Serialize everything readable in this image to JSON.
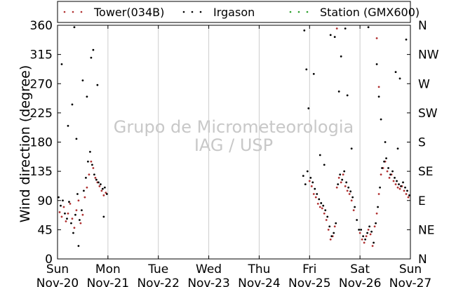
{
  "chart_data": {
    "type": "scatter",
    "title": "",
    "ylabel": "Wind direction (degree)",
    "xlabel": "",
    "ylim": [
      0,
      360
    ],
    "xlim": [
      "2016-11-20T00:00",
      "2016-11-27T00:00"
    ],
    "yticks": [
      0,
      45,
      90,
      135,
      180,
      225,
      270,
      315,
      360
    ],
    "compass_ticks": [
      {
        "value": 0,
        "label": "N"
      },
      {
        "value": 45,
        "label": "NE"
      },
      {
        "value": 90,
        "label": "E"
      },
      {
        "value": 135,
        "label": "SE"
      },
      {
        "value": 180,
        "label": "S"
      },
      {
        "value": 225,
        "label": "SW"
      },
      {
        "value": 270,
        "label": "W"
      },
      {
        "value": 315,
        "label": "NW"
      },
      {
        "value": 360,
        "label": "N"
      }
    ],
    "xticks": [
      {
        "day": "Sun",
        "date": "Nov-20"
      },
      {
        "day": "Mon",
        "date": "Nov-21"
      },
      {
        "day": "Tue",
        "date": "Nov-22"
      },
      {
        "day": "Wed",
        "date": "Nov-23"
      },
      {
        "day": "Thu",
        "date": "Nov-24"
      },
      {
        "day": "Fri",
        "date": "Nov-25"
      },
      {
        "day": "Sat",
        "date": "Nov-26"
      },
      {
        "day": "Sun",
        "date": "Nov-27"
      }
    ],
    "grid": "vertical",
    "legend": {
      "placement": "top",
      "entries": [
        {
          "label": "Tower(034B)",
          "color": "#b03030"
        },
        {
          "label": "Irgason",
          "color": "#000000"
        },
        {
          "label": "Station (GMX600)",
          "color": "#2ca02c"
        }
      ]
    },
    "watermark": [
      "Grupo de Micrometeorologia",
      "IAG / USP"
    ],
    "series": [
      {
        "name": "Tower(034B)",
        "color": "#b03030",
        "points": [
          [
            "2016-11-20T01:00",
            72
          ],
          [
            "2016-11-20T02:00",
            65
          ],
          [
            "2016-11-20T03:00",
            80
          ],
          [
            "2016-11-20T04:00",
            58
          ],
          [
            "2016-11-20T05:00",
            70
          ],
          [
            "2016-11-20T06:00",
            85
          ],
          [
            "2016-11-20T07:00",
            62
          ],
          [
            "2016-11-20T08:00",
            48
          ],
          [
            "2016-11-20T09:00",
            75
          ],
          [
            "2016-11-20T10:00",
            90
          ],
          [
            "2016-11-20T11:00",
            55
          ],
          [
            "2016-11-20T12:00",
            68
          ],
          [
            "2016-11-20T13:00",
            95
          ],
          [
            "2016-11-20T14:00",
            110
          ],
          [
            "2016-11-20T15:00",
            130
          ],
          [
            "2016-11-20T16:00",
            150
          ],
          [
            "2016-11-20T17:00",
            140
          ],
          [
            "2016-11-20T18:00",
            125
          ],
          [
            "2016-11-20T19:00",
            118
          ],
          [
            "2016-11-20T20:00",
            112
          ],
          [
            "2016-11-20T21:00",
            105
          ],
          [
            "2016-11-20T22:00",
            98
          ],
          [
            "2016-11-20T23:00",
            102
          ],
          [
            "2016-11-25T00:00",
            120
          ],
          [
            "2016-11-25T01:00",
            112
          ],
          [
            "2016-11-25T02:00",
            100
          ],
          [
            "2016-11-25T03:00",
            95
          ],
          [
            "2016-11-25T04:00",
            85
          ],
          [
            "2016-11-25T05:00",
            80
          ],
          [
            "2016-11-25T06:00",
            78
          ],
          [
            "2016-11-25T07:00",
            70
          ],
          [
            "2016-11-25T08:00",
            60
          ],
          [
            "2016-11-25T09:00",
            45
          ],
          [
            "2016-11-25T10:00",
            30
          ],
          [
            "2016-11-25T11:00",
            35
          ],
          [
            "2016-11-25T12:00",
            50
          ],
          [
            "2016-11-25T13:00",
            110
          ],
          [
            "2016-11-25T14:00",
            125
          ],
          [
            "2016-11-25T15:00",
            118
          ],
          [
            "2016-11-25T16:00",
            130
          ],
          [
            "2016-11-25T17:00",
            112
          ],
          [
            "2016-11-25T18:00",
            105
          ],
          [
            "2016-11-25T19:00",
            100
          ],
          [
            "2016-11-25T20:00",
            90
          ],
          [
            "2016-11-25T21:00",
            75
          ],
          [
            "2016-11-26T00:00",
            40
          ],
          [
            "2016-11-26T01:00",
            30
          ],
          [
            "2016-11-26T02:00",
            25
          ],
          [
            "2016-11-26T03:00",
            35
          ],
          [
            "2016-11-26T04:00",
            45
          ],
          [
            "2016-11-26T05:00",
            38
          ],
          [
            "2016-11-26T06:00",
            20
          ],
          [
            "2016-11-26T07:00",
            50
          ],
          [
            "2016-11-26T08:00",
            70
          ],
          [
            "2016-11-26T09:00",
            100
          ],
          [
            "2016-11-26T10:00",
            130
          ],
          [
            "2016-11-26T11:00",
            140
          ],
          [
            "2016-11-26T12:00",
            150
          ],
          [
            "2016-11-26T13:00",
            135
          ],
          [
            "2016-11-26T14:00",
            125
          ],
          [
            "2016-11-26T15:00",
            130
          ],
          [
            "2016-11-26T16:00",
            120
          ],
          [
            "2016-11-26T17:00",
            115
          ],
          [
            "2016-11-26T18:00",
            110
          ],
          [
            "2016-11-26T19:00",
            108
          ],
          [
            "2016-11-26T20:00",
            112
          ],
          [
            "2016-11-26T21:00",
            105
          ],
          [
            "2016-11-26T22:00",
            100
          ],
          [
            "2016-11-26T23:00",
            95
          ],
          [
            "2016-11-25T13:00",
            355
          ],
          [
            "2016-11-26T08:00",
            340
          ],
          [
            "2016-11-26T09:00",
            265
          ]
        ]
      },
      {
        "name": "Irgason",
        "color": "#000000",
        "points": [
          [
            "2016-11-20T00:30",
            95
          ],
          [
            "2016-11-20T01:30",
            82
          ],
          [
            "2016-11-20T02:30",
            90
          ],
          [
            "2016-11-20T03:30",
            70
          ],
          [
            "2016-11-20T04:30",
            62
          ],
          [
            "2016-11-20T05:30",
            88
          ],
          [
            "2016-11-20T06:30",
            55
          ],
          [
            "2016-11-20T07:30",
            40
          ],
          [
            "2016-11-20T08:30",
            68
          ],
          [
            "2016-11-20T09:30",
            100
          ],
          [
            "2016-11-20T10:30",
            60
          ],
          [
            "2016-11-20T11:30",
            75
          ],
          [
            "2016-11-20T12:30",
            105
          ],
          [
            "2016-11-20T13:30",
            125
          ],
          [
            "2016-11-20T14:30",
            150
          ],
          [
            "2016-11-20T15:30",
            165
          ],
          [
            "2016-11-20T16:30",
            145
          ],
          [
            "2016-11-20T17:30",
            130
          ],
          [
            "2016-11-20T18:30",
            122
          ],
          [
            "2016-11-20T19:30",
            118
          ],
          [
            "2016-11-20T20:30",
            115
          ],
          [
            "2016-11-20T21:30",
            108
          ],
          [
            "2016-11-20T22:30",
            110
          ],
          [
            "2016-11-20T23:30",
            100
          ],
          [
            "2016-11-20T02:00",
            300
          ],
          [
            "2016-11-20T05:00",
            205
          ],
          [
            "2016-11-20T08:00",
            357
          ],
          [
            "2016-11-20T07:00",
            238
          ],
          [
            "2016-11-20T12:00",
            275
          ],
          [
            "2016-11-20T14:00",
            250
          ],
          [
            "2016-11-20T16:00",
            310
          ],
          [
            "2016-11-20T17:00",
            322
          ],
          [
            "2016-11-20T19:00",
            268
          ],
          [
            "2016-11-20T09:00",
            185
          ],
          [
            "2016-11-20T10:00",
            20
          ],
          [
            "2016-11-20T22:00",
            65
          ],
          [
            "2016-11-24T21:00",
            128
          ],
          [
            "2016-11-24T22:00",
            115
          ],
          [
            "2016-11-24T23:00",
            135
          ],
          [
            "2016-11-24T21:30",
            352
          ],
          [
            "2016-11-24T22:30",
            292
          ],
          [
            "2016-11-24T23:30",
            232
          ],
          [
            "2016-11-25T00:30",
            125
          ],
          [
            "2016-11-25T01:30",
            118
          ],
          [
            "2016-11-25T02:30",
            108
          ],
          [
            "2016-11-25T03:30",
            100
          ],
          [
            "2016-11-25T04:30",
            92
          ],
          [
            "2016-11-25T05:30",
            86
          ],
          [
            "2016-11-25T06:30",
            82
          ],
          [
            "2016-11-25T07:30",
            75
          ],
          [
            "2016-11-25T08:30",
            65
          ],
          [
            "2016-11-25T09:30",
            50
          ],
          [
            "2016-11-25T10:30",
            35
          ],
          [
            "2016-11-25T11:30",
            40
          ],
          [
            "2016-11-25T12:30",
            55
          ],
          [
            "2016-11-25T13:30",
            115
          ],
          [
            "2016-11-25T14:30",
            130
          ],
          [
            "2016-11-25T15:30",
            122
          ],
          [
            "2016-11-25T16:30",
            135
          ],
          [
            "2016-11-25T17:30",
            118
          ],
          [
            "2016-11-25T18:30",
            110
          ],
          [
            "2016-11-25T19:30",
            104
          ],
          [
            "2016-11-25T20:30",
            95
          ],
          [
            "2016-11-25T21:30",
            80
          ],
          [
            "2016-11-25T22:30",
            60
          ],
          [
            "2016-11-25T23:30",
            45
          ],
          [
            "2016-11-25T02:00",
            285
          ],
          [
            "2016-11-25T05:00",
            160
          ],
          [
            "2016-11-25T07:00",
            145
          ],
          [
            "2016-11-25T10:00",
            345
          ],
          [
            "2016-11-25T12:00",
            342
          ],
          [
            "2016-11-25T14:00",
            258
          ],
          [
            "2016-11-25T15:00",
            312
          ],
          [
            "2016-11-25T17:00",
            355
          ],
          [
            "2016-11-25T18:00",
            252
          ],
          [
            "2016-11-25T20:00",
            170
          ],
          [
            "2016-11-26T00:30",
            45
          ],
          [
            "2016-11-26T01:30",
            35
          ],
          [
            "2016-11-26T02:30",
            30
          ],
          [
            "2016-11-26T03:30",
            40
          ],
          [
            "2016-11-26T04:30",
            50
          ],
          [
            "2016-11-26T05:30",
            42
          ],
          [
            "2016-11-26T06:30",
            25
          ],
          [
            "2016-11-26T07:30",
            55
          ],
          [
            "2016-11-26T08:30",
            80
          ],
          [
            "2016-11-26T09:30",
            110
          ],
          [
            "2016-11-26T10:30",
            140
          ],
          [
            "2016-11-26T11:30",
            150
          ],
          [
            "2016-11-26T12:30",
            155
          ],
          [
            "2016-11-26T13:30",
            140
          ],
          [
            "2016-11-26T14:30",
            130
          ],
          [
            "2016-11-26T15:30",
            135
          ],
          [
            "2016-11-26T16:30",
            125
          ],
          [
            "2016-11-26T17:30",
            120
          ],
          [
            "2016-11-26T18:30",
            115
          ],
          [
            "2016-11-26T19:30",
            112
          ],
          [
            "2016-11-26T20:30",
            118
          ],
          [
            "2016-11-26T21:30",
            110
          ],
          [
            "2016-11-26T22:30",
            105
          ],
          [
            "2016-11-26T23:30",
            98
          ],
          [
            "2016-11-26T04:00",
            357
          ],
          [
            "2016-11-26T08:00",
            300
          ],
          [
            "2016-11-26T09:00",
            250
          ],
          [
            "2016-11-26T10:00",
            215
          ],
          [
            "2016-11-26T12:00",
            180
          ],
          [
            "2016-11-26T17:00",
            288
          ],
          [
            "2016-11-26T19:00",
            278
          ],
          [
            "2016-11-26T22:00",
            338
          ],
          [
            "2016-11-26T18:00",
            170
          ]
        ]
      },
      {
        "name": "Station (GMX600)",
        "color": "#2ca02c",
        "points": []
      }
    ]
  }
}
